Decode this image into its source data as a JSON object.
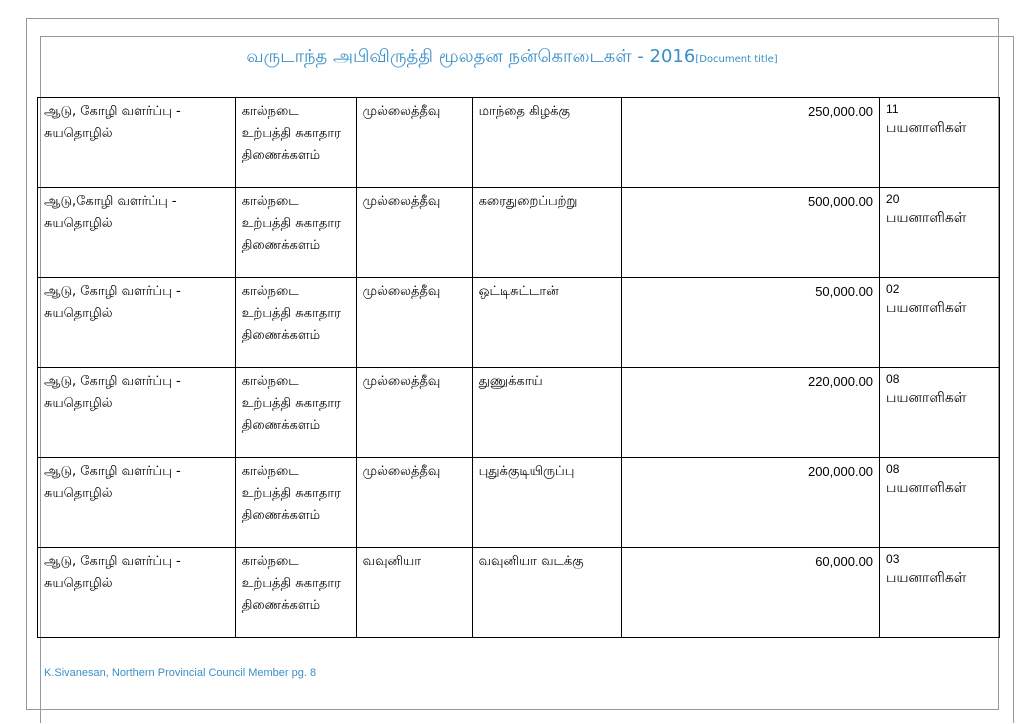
{
  "header": {
    "title": "வருடாந்த அபிவிருத்தி மூலதன நன்கொடைகள் - 2016",
    "placeholder": "[Document title]"
  },
  "table": {
    "rows": [
      [
        "ஆடு, கோழி வளர்ப்பு - சுயதொழில்",
        "கால்நடை உற்பத்தி சுகாதார திணைக்களம்",
        "முல்லைத்தீவு",
        "மாந்தை கிழக்கு",
        "250,000.00",
        "11",
        "பயனாளிகள்"
      ],
      [
        "ஆடு,கோழி வளர்ப்பு - சுயதொழில்",
        "கால்நடை உற்பத்தி சுகாதார திணைக்களம்",
        "முல்லைத்தீவு",
        "கரைதுறைப்பற்று",
        "500,000.00",
        "20",
        "பயனாளிகள்"
      ],
      [
        "ஆடு, கோழி வளர்ப்பு - சுயதொழில்",
        "கால்நடை உற்பத்தி சுகாதார திணைக்களம்",
        "முல்லைத்தீவு",
        "ஒட்டிசுட்டான்",
        "50,000.00",
        "02",
        "பயனாளிகள்"
      ],
      [
        "ஆடு, கோழி வளர்ப்பு - சுயதொழில்",
        "கால்நடை உற்பத்தி சுகாதார திணைக்களம்",
        "முல்லைத்தீவு",
        "துணுக்காய்",
        "220,000.00",
        "08",
        "பயனாளிகள்"
      ],
      [
        "ஆடு, கோழி வளர்ப்பு - சுயதொழில்",
        "கால்நடை உற்பத்தி சுகாதார திணைக்களம்",
        "முல்லைத்தீவு",
        "புதுக்குடியிருப்பு",
        "200,000.00",
        "08",
        "பயனாளிகள்"
      ],
      [
        "ஆடு, கோழி வளர்ப்பு - சுயதொழில்",
        "கால்நடை உற்பத்தி சுகாதார திணைக்களம்",
        "வவுனியா",
        "வவுனியா வடக்கு",
        "60,000.00",
        "03",
        "பயனாளிகள்"
      ]
    ]
  },
  "footer": {
    "text": "K.Sivanesan, Northern Provincial Council Member pg. 8"
  }
}
